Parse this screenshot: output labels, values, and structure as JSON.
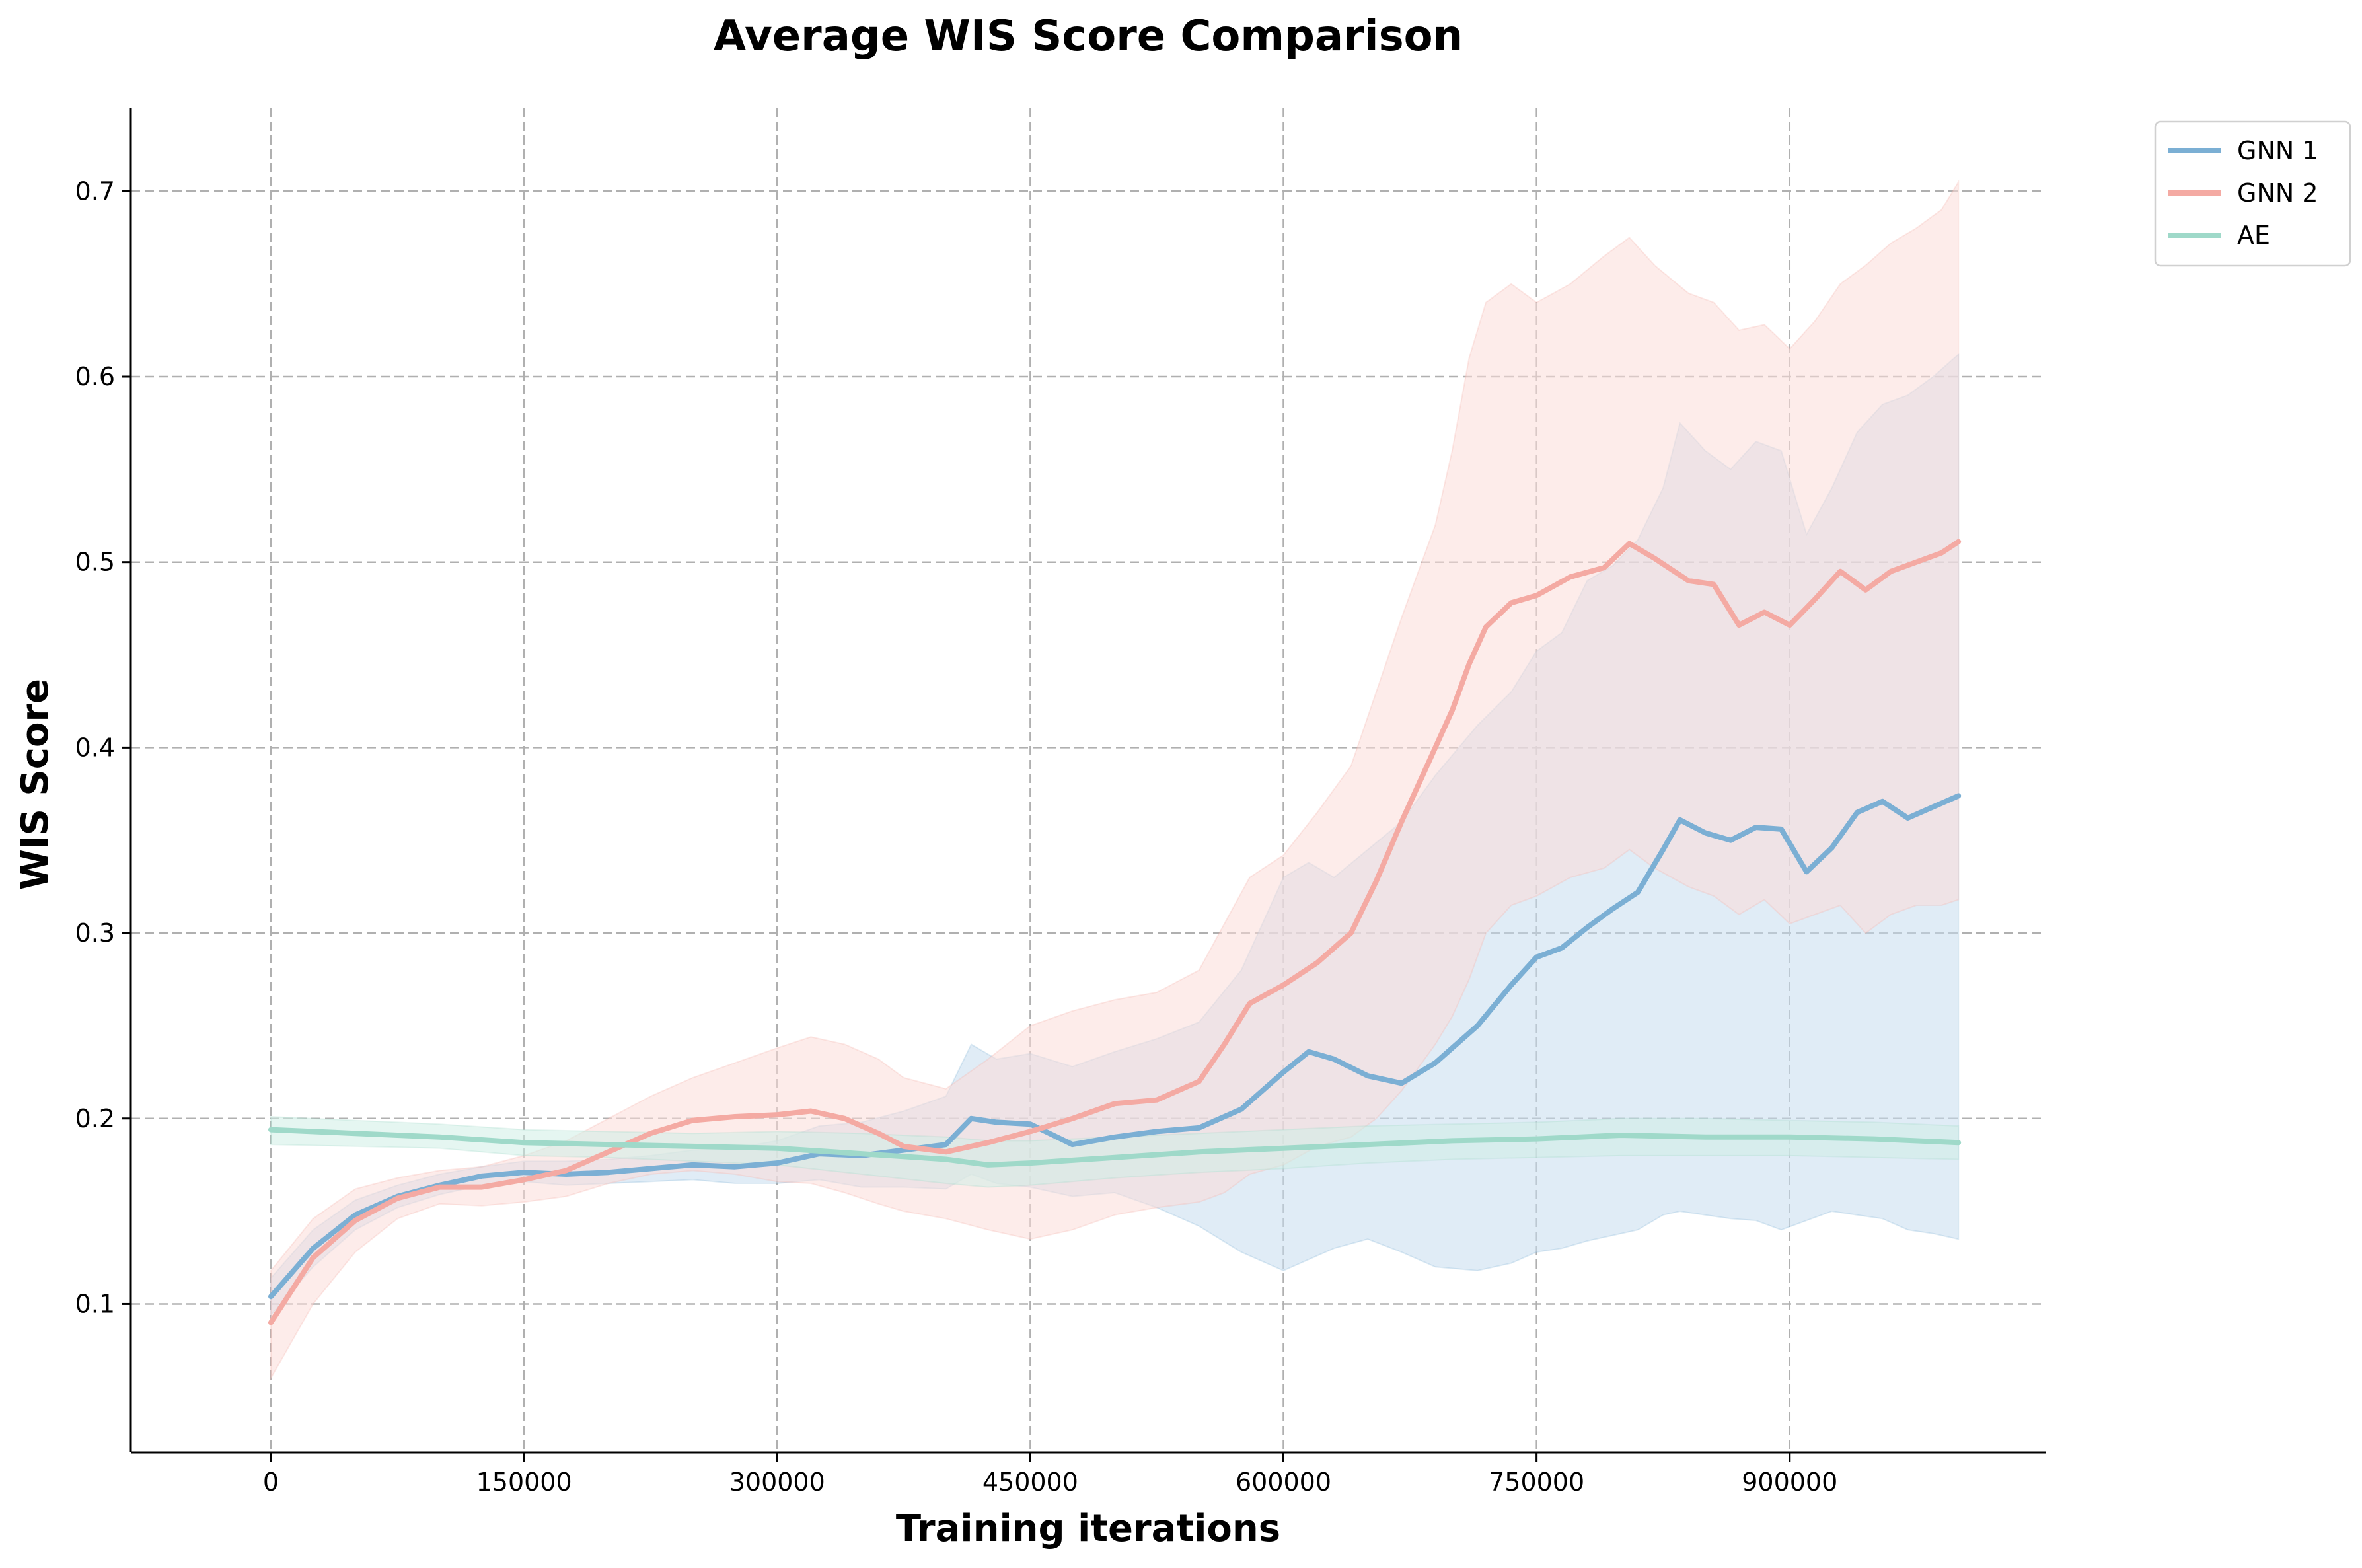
{
  "chart_data": {
    "type": "line",
    "title": "Average WIS Score Comparison",
    "xlabel": "Training iterations",
    "ylabel": "WIS Score",
    "xlim": [
      -83000,
      1052000
    ],
    "ylim": [
      0.02,
      0.745
    ],
    "x_ticks": [
      0,
      150000,
      300000,
      450000,
      600000,
      750000,
      900000
    ],
    "x_tick_labels": [
      "0",
      "150000",
      "300000",
      "450000",
      "600000",
      "750000",
      "900000"
    ],
    "y_ticks": [
      0.1,
      0.2,
      0.3,
      0.4,
      0.5,
      0.6,
      0.7
    ],
    "y_tick_labels": [
      "0.1",
      "0.2",
      "0.3",
      "0.4",
      "0.5",
      "0.6",
      "0.7"
    ],
    "grid": true,
    "legend_position": "upper right, outside plot area",
    "series": [
      {
        "name": "GNN 1",
        "color": "#7bafd4",
        "fill_color": "#c6ddef",
        "points": [
          [
            0,
            0.104,
            0.094,
            0.114
          ],
          [
            25000,
            0.13,
            0.12,
            0.14
          ],
          [
            50000,
            0.148,
            0.14,
            0.156
          ],
          [
            75000,
            0.158,
            0.152,
            0.164
          ],
          [
            100000,
            0.164,
            0.159,
            0.17
          ],
          [
            125000,
            0.169,
            0.164,
            0.174
          ],
          [
            150000,
            0.171,
            0.166,
            0.177
          ],
          [
            175000,
            0.17,
            0.164,
            0.177
          ],
          [
            200000,
            0.171,
            0.165,
            0.178
          ],
          [
            225000,
            0.173,
            0.166,
            0.18
          ],
          [
            250000,
            0.175,
            0.167,
            0.183
          ],
          [
            275000,
            0.174,
            0.165,
            0.184
          ],
          [
            300000,
            0.176,
            0.165,
            0.188
          ],
          [
            325000,
            0.181,
            0.167,
            0.196
          ],
          [
            350000,
            0.18,
            0.163,
            0.198
          ],
          [
            375000,
            0.183,
            0.163,
            0.204
          ],
          [
            400000,
            0.186,
            0.162,
            0.212
          ],
          [
            415000,
            0.2,
            0.17,
            0.24
          ],
          [
            430000,
            0.198,
            0.165,
            0.232
          ],
          [
            450000,
            0.197,
            0.163,
            0.235
          ],
          [
            475000,
            0.186,
            0.158,
            0.228
          ],
          [
            500000,
            0.19,
            0.16,
            0.236
          ],
          [
            525000,
            0.193,
            0.152,
            0.243
          ],
          [
            550000,
            0.195,
            0.142,
            0.252
          ],
          [
            575000,
            0.205,
            0.128,
            0.28
          ],
          [
            600000,
            0.225,
            0.118,
            0.33
          ],
          [
            615000,
            0.236,
            0.124,
            0.338
          ],
          [
            630000,
            0.232,
            0.13,
            0.33
          ],
          [
            650000,
            0.223,
            0.135,
            0.345
          ],
          [
            670000,
            0.219,
            0.128,
            0.36
          ],
          [
            690000,
            0.23,
            0.12,
            0.385
          ],
          [
            715000,
            0.25,
            0.118,
            0.412
          ],
          [
            735000,
            0.272,
            0.122,
            0.43
          ],
          [
            750000,
            0.287,
            0.128,
            0.452
          ],
          [
            765000,
            0.292,
            0.13,
            0.462
          ],
          [
            780000,
            0.303,
            0.134,
            0.49
          ],
          [
            795000,
            0.313,
            0.137,
            0.498
          ],
          [
            810000,
            0.322,
            0.14,
            0.512
          ],
          [
            825000,
            0.345,
            0.148,
            0.54
          ],
          [
            835000,
            0.361,
            0.15,
            0.575
          ],
          [
            850000,
            0.354,
            0.148,
            0.56
          ],
          [
            865000,
            0.35,
            0.146,
            0.55
          ],
          [
            880000,
            0.357,
            0.145,
            0.565
          ],
          [
            895000,
            0.356,
            0.14,
            0.56
          ],
          [
            910000,
            0.333,
            0.145,
            0.515
          ],
          [
            925000,
            0.346,
            0.15,
            0.54
          ],
          [
            940000,
            0.365,
            0.148,
            0.57
          ],
          [
            955000,
            0.371,
            0.146,
            0.585
          ],
          [
            970000,
            0.362,
            0.14,
            0.59
          ],
          [
            985000,
            0.368,
            0.138,
            0.6
          ],
          [
            1000000,
            0.374,
            0.135,
            0.612
          ]
        ]
      },
      {
        "name": "GNN 2",
        "color": "#f4aaa3",
        "fill_color": "#fcdcd9",
        "points": [
          [
            0,
            0.09,
            0.06,
            0.118
          ],
          [
            25000,
            0.125,
            0.1,
            0.146
          ],
          [
            50000,
            0.145,
            0.128,
            0.162
          ],
          [
            75000,
            0.157,
            0.146,
            0.168
          ],
          [
            100000,
            0.163,
            0.154,
            0.172
          ],
          [
            125000,
            0.163,
            0.153,
            0.174
          ],
          [
            150000,
            0.167,
            0.155,
            0.18
          ],
          [
            175000,
            0.172,
            0.158,
            0.188
          ],
          [
            200000,
            0.182,
            0.165,
            0.2
          ],
          [
            225000,
            0.192,
            0.17,
            0.212
          ],
          [
            250000,
            0.199,
            0.172,
            0.222
          ],
          [
            275000,
            0.201,
            0.17,
            0.23
          ],
          [
            300000,
            0.202,
            0.166,
            0.238
          ],
          [
            320000,
            0.204,
            0.165,
            0.244
          ],
          [
            340000,
            0.2,
            0.16,
            0.24
          ],
          [
            360000,
            0.192,
            0.154,
            0.232
          ],
          [
            375000,
            0.185,
            0.15,
            0.222
          ],
          [
            400000,
            0.182,
            0.146,
            0.216
          ],
          [
            425000,
            0.187,
            0.14,
            0.232
          ],
          [
            450000,
            0.193,
            0.135,
            0.25
          ],
          [
            475000,
            0.2,
            0.14,
            0.258
          ],
          [
            500000,
            0.208,
            0.148,
            0.264
          ],
          [
            525000,
            0.21,
            0.152,
            0.268
          ],
          [
            550000,
            0.22,
            0.155,
            0.28
          ],
          [
            565000,
            0.24,
            0.16,
            0.305
          ],
          [
            580000,
            0.262,
            0.17,
            0.33
          ],
          [
            600000,
            0.272,
            0.175,
            0.342
          ],
          [
            620000,
            0.284,
            0.185,
            0.365
          ],
          [
            640000,
            0.3,
            0.19,
            0.39
          ],
          [
            655000,
            0.328,
            0.2,
            0.43
          ],
          [
            670000,
            0.36,
            0.215,
            0.47
          ],
          [
            690000,
            0.4,
            0.24,
            0.52
          ],
          [
            700000,
            0.42,
            0.255,
            0.56
          ],
          [
            710000,
            0.445,
            0.275,
            0.61
          ],
          [
            720000,
            0.465,
            0.3,
            0.64
          ],
          [
            735000,
            0.478,
            0.315,
            0.65
          ],
          [
            750000,
            0.482,
            0.32,
            0.64
          ],
          [
            770000,
            0.492,
            0.33,
            0.65
          ],
          [
            790000,
            0.497,
            0.335,
            0.665
          ],
          [
            805000,
            0.51,
            0.345,
            0.675
          ],
          [
            820000,
            0.502,
            0.335,
            0.66
          ],
          [
            840000,
            0.49,
            0.325,
            0.645
          ],
          [
            855000,
            0.488,
            0.32,
            0.64
          ],
          [
            870000,
            0.466,
            0.31,
            0.625
          ],
          [
            885000,
            0.473,
            0.318,
            0.628
          ],
          [
            900000,
            0.466,
            0.305,
            0.615
          ],
          [
            915000,
            0.48,
            0.31,
            0.63
          ],
          [
            930000,
            0.495,
            0.315,
            0.65
          ],
          [
            945000,
            0.485,
            0.3,
            0.66
          ],
          [
            960000,
            0.495,
            0.31,
            0.672
          ],
          [
            975000,
            0.5,
            0.315,
            0.68
          ],
          [
            990000,
            0.505,
            0.315,
            0.69
          ],
          [
            1000000,
            0.511,
            0.318,
            0.705
          ]
        ]
      },
      {
        "name": "AE",
        "color": "#9fd9c9",
        "fill_color": "#cfeee5",
        "points": [
          [
            0,
            0.194,
            0.186,
            0.201
          ],
          [
            50000,
            0.192,
            0.185,
            0.199
          ],
          [
            100000,
            0.19,
            0.184,
            0.197
          ],
          [
            150000,
            0.187,
            0.18,
            0.194
          ],
          [
            200000,
            0.186,
            0.179,
            0.193
          ],
          [
            250000,
            0.185,
            0.177,
            0.192
          ],
          [
            300000,
            0.184,
            0.175,
            0.193
          ],
          [
            350000,
            0.181,
            0.17,
            0.192
          ],
          [
            400000,
            0.178,
            0.165,
            0.19
          ],
          [
            425000,
            0.175,
            0.163,
            0.188
          ],
          [
            450000,
            0.176,
            0.164,
            0.188
          ],
          [
            500000,
            0.179,
            0.168,
            0.19
          ],
          [
            550000,
            0.182,
            0.171,
            0.192
          ],
          [
            600000,
            0.184,
            0.173,
            0.194
          ],
          [
            650000,
            0.186,
            0.176,
            0.196
          ],
          [
            700000,
            0.188,
            0.178,
            0.197
          ],
          [
            750000,
            0.189,
            0.179,
            0.198
          ],
          [
            800000,
            0.191,
            0.18,
            0.2
          ],
          [
            850000,
            0.19,
            0.18,
            0.2
          ],
          [
            900000,
            0.19,
            0.18,
            0.199
          ],
          [
            950000,
            0.189,
            0.179,
            0.198
          ],
          [
            1000000,
            0.187,
            0.178,
            0.196
          ]
        ]
      }
    ]
  }
}
